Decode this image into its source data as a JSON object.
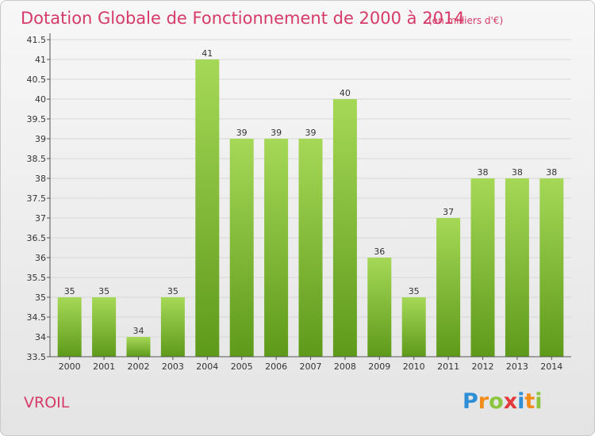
{
  "header": {
    "title": "Dotation Globale de Fonctionnement de 2000 à 2014",
    "unit": "(en milliers d'€)"
  },
  "footer": {
    "commune": "VROIL",
    "brand_letters": [
      "P",
      "r",
      "o",
      "x",
      "i",
      "t",
      "i"
    ],
    "brand_colors": [
      "#2e8fd6",
      "#f28c18",
      "#8cc63f",
      "#e23a3a",
      "#2e8fd6",
      "#f28c18",
      "#8cc63f"
    ]
  },
  "chart_data": {
    "type": "bar",
    "title": "Dotation Globale de Fonctionnement de 2000 à 2014",
    "subtitle": "(en milliers d'€)",
    "xlabel": "",
    "ylabel": "",
    "categories": [
      "2000",
      "2001",
      "2002",
      "2003",
      "2004",
      "2005",
      "2006",
      "2007",
      "2008",
      "2009",
      "2010",
      "2011",
      "2012",
      "2013",
      "2014"
    ],
    "values": [
      35,
      35,
      34,
      35,
      41,
      39,
      39,
      39,
      40,
      36,
      35,
      37,
      38,
      38,
      38
    ],
    "data_labels": [
      "35",
      "35",
      "34",
      "35",
      "41",
      "39",
      "39",
      "39",
      "40",
      "36",
      "35",
      "37",
      "38",
      "38",
      "38"
    ],
    "ylim": [
      33.5,
      41.5
    ],
    "yticks": [
      "33.5",
      "34",
      "34.5",
      "35",
      "35.5",
      "36",
      "36.5",
      "37",
      "37.5",
      "38",
      "38.5",
      "39",
      "39.5",
      "40",
      "40.5",
      "41",
      "41.5"
    ],
    "grid": true,
    "legend": "none",
    "colors": {
      "bar_top": "#a6d857",
      "bar_bottom": "#5e9a1a",
      "title": "#d63a68",
      "grid": "#d8d8d8"
    }
  }
}
